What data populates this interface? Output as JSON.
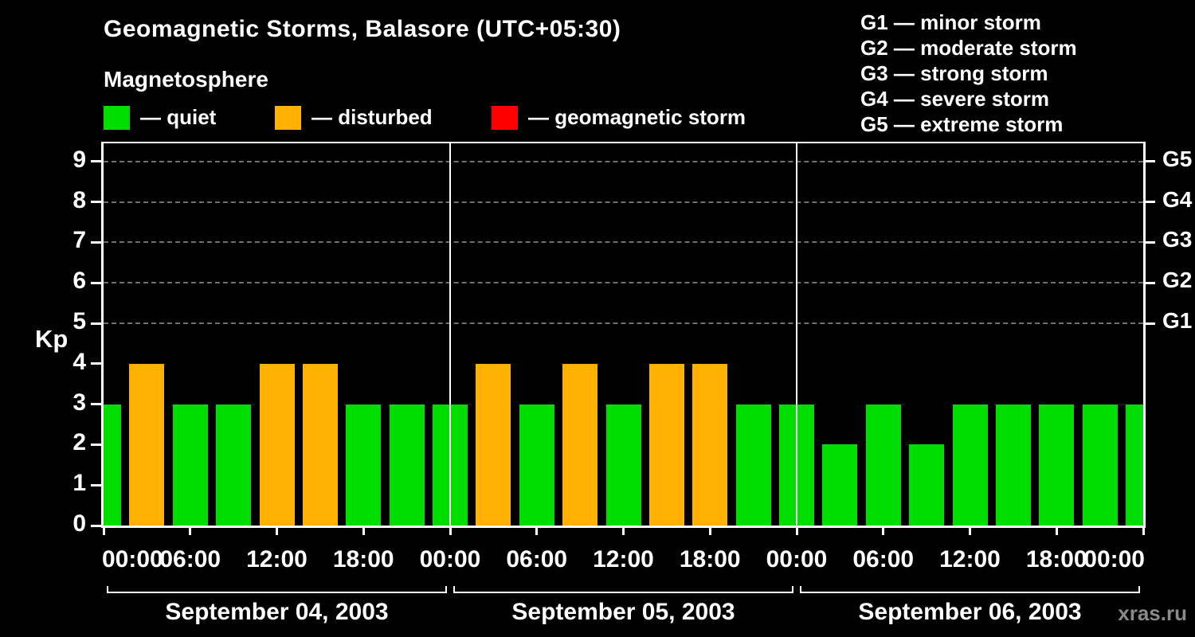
{
  "header": {
    "title": "Geomagnetic Storms, Balasore (UTC+05:30)",
    "subtitle": "Magnetosphere"
  },
  "legend": {
    "items": [
      {
        "key": "quiet",
        "label": "— quiet"
      },
      {
        "key": "disturbed",
        "label": "— disturbed"
      },
      {
        "key": "storm",
        "label": "— geomagnetic storm"
      }
    ]
  },
  "g_scale_legend": [
    "G1 — minor storm",
    "G2 — moderate storm",
    "G3 — strong storm",
    "G4 — severe storm",
    "G5 — extreme storm"
  ],
  "watermark": "xras.ru",
  "chart_data": {
    "type": "bar",
    "title": "Geomagnetic Storms, Balasore (UTC+05:30)",
    "subtitle": "Magnetosphere",
    "xlabel": "",
    "ylabel": "Kp",
    "ylim": [
      0,
      9.45
    ],
    "y_ticks": [
      0,
      1,
      2,
      3,
      4,
      5,
      6,
      7,
      8,
      9
    ],
    "right_axis_ticks": [
      {
        "label": "G1",
        "kp": 5
      },
      {
        "label": "G2",
        "kp": 6
      },
      {
        "label": "G3",
        "kp": 7
      },
      {
        "label": "G4",
        "kp": 8
      },
      {
        "label": "G5",
        "kp": 9
      }
    ],
    "x_tick_labels": [
      "00:00",
      "06:00",
      "12:00",
      "18:00",
      "00:00",
      "06:00",
      "12:00",
      "18:00",
      "00:00",
      "06:00",
      "12:00",
      "18:00",
      "00:00"
    ],
    "hours_per_bar": 3,
    "days": [
      {
        "date": "September 04, 2003",
        "kp": [
          3,
          4,
          3,
          3,
          4,
          4,
          3,
          3
        ]
      },
      {
        "date": "September 05, 2003",
        "kp": [
          3,
          4,
          3,
          4,
          3,
          4,
          4,
          3
        ]
      },
      {
        "date": "September 06, 2003",
        "kp": [
          3,
          2,
          3,
          2,
          3,
          3,
          3,
          3
        ]
      }
    ],
    "next_day_partial_kp": 3,
    "colors": {
      "quiet": "#00dd00",
      "disturbed": "#ffb000",
      "storm": "#ff0000"
    },
    "color_rules": {
      "quiet_max": 3,
      "disturbed_max": 4
    },
    "grid": "dashed horizontal lines at G1–G5 levels",
    "legend_position": "top"
  }
}
